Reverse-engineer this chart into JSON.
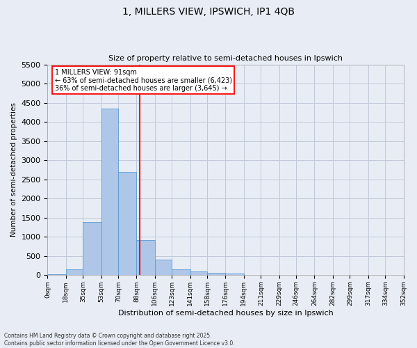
{
  "title_line1": "1, MILLERS VIEW, IPSWICH, IP1 4QB",
  "title_line2": "Size of property relative to semi-detached houses in Ipswich",
  "xlabel": "Distribution of semi-detached houses by size in Ipswich",
  "ylabel": "Number of semi-detached properties",
  "annotation_line1": "1 MILLERS VIEW: 91sqm",
  "annotation_line2": "← 63% of semi-detached houses are smaller (6,423)",
  "annotation_line3": "36% of semi-detached houses are larger (3,645) →",
  "bin_labels": [
    "0sqm",
    "18sqm",
    "35sqm",
    "53sqm",
    "70sqm",
    "88sqm",
    "106sqm",
    "123sqm",
    "141sqm",
    "158sqm",
    "176sqm",
    "194sqm",
    "211sqm",
    "229sqm",
    "246sqm",
    "264sqm",
    "282sqm",
    "299sqm",
    "317sqm",
    "334sqm",
    "352sqm"
  ],
  "bin_edges": [
    0,
    18,
    35,
    53,
    70,
    88,
    106,
    123,
    141,
    158,
    176,
    194,
    211,
    229,
    246,
    264,
    282,
    299,
    317,
    334,
    352
  ],
  "bar_values": [
    30,
    150,
    1390,
    4350,
    2700,
    910,
    410,
    160,
    100,
    60,
    40,
    15,
    5,
    2,
    2,
    2,
    2,
    2,
    2,
    2
  ],
  "bar_color": "#aec6e8",
  "bar_edge_color": "#5b9bd5",
  "vline_x": 91,
  "vline_color": "red",
  "ylim": [
    0,
    5500
  ],
  "yticks": [
    0,
    500,
    1000,
    1500,
    2000,
    2500,
    3000,
    3500,
    4000,
    4500,
    5000,
    5500
  ],
  "grid_color": "#c0c8d8",
  "background_color": "#e8edf5",
  "footer_line1": "Contains HM Land Registry data © Crown copyright and database right 2025.",
  "footer_line2": "Contains public sector information licensed under the Open Government Licence v3.0."
}
